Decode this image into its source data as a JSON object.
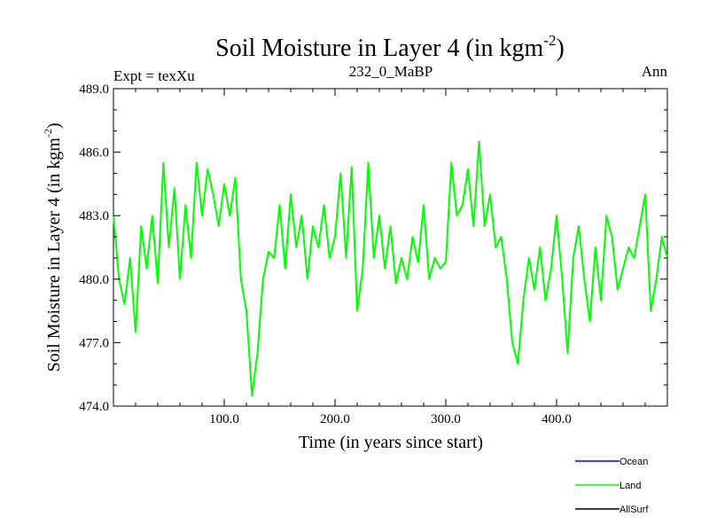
{
  "chart_data": {
    "type": "line",
    "title": "Soil Moisture in Layer 4 (in kgm",
    "title_units_exponent": "-2",
    "title_close": ")",
    "left_label": "Expt = texXu",
    "center_label": "232_0_MaBP",
    "right_label": "Ann",
    "xlabel": "Time (in years since start)",
    "ylabel": "Soil Moisture in Layer 4 (in kgm",
    "ylabel_exponent": "-2",
    "ylabel_close": ")",
    "xlim": [
      0,
      500
    ],
    "ylim": [
      474.0,
      489.0
    ],
    "x_ticks": [
      {
        "value": 100,
        "label": "100.0"
      },
      {
        "value": 200,
        "label": "200.0"
      },
      {
        "value": 300,
        "label": "300.0"
      },
      {
        "value": 400,
        "label": "400.0"
      }
    ],
    "y_ticks": [
      {
        "value": 474,
        "label": "474.0"
      },
      {
        "value": 477,
        "label": "477.0"
      },
      {
        "value": 480,
        "label": "480.0"
      },
      {
        "value": 483,
        "label": "483.0"
      },
      {
        "value": 486,
        "label": "486.0"
      },
      {
        "value": 489,
        "label": "489.0"
      }
    ],
    "legend": [
      {
        "name": "Ocean",
        "color": "#0000ff"
      },
      {
        "name": "Land",
        "color": "#00ff00"
      },
      {
        "name": "AllSurf",
        "color": "#000000"
      }
    ],
    "series": [
      {
        "name": "Land",
        "color": "#00ff00",
        "x_start": 0,
        "x_step": 5,
        "values": [
          483.0,
          480.0,
          478.8,
          481.0,
          477.5,
          482.5,
          480.5,
          483.0,
          479.8,
          485.5,
          481.5,
          484.3,
          480.0,
          483.5,
          481.0,
          485.5,
          483.0,
          485.2,
          484.0,
          482.5,
          484.5,
          483.0,
          484.8,
          480.0,
          478.5,
          474.5,
          476.5,
          480.0,
          481.3,
          481.0,
          483.5,
          480.5,
          484.0,
          481.5,
          483.0,
          480.0,
          482.5,
          481.5,
          483.5,
          481.0,
          482.0,
          485.0,
          481.0,
          485.3,
          478.5,
          480.5,
          485.5,
          481.0,
          483.0,
          480.5,
          482.5,
          479.8,
          481.0,
          480.0,
          482.0,
          480.8,
          483.5,
          480.0,
          481.0,
          480.5,
          480.8,
          485.5,
          483.0,
          483.5,
          485.2,
          482.5,
          486.5,
          482.5,
          484.0,
          481.5,
          482.0,
          480.0,
          477.0,
          476.0,
          479.0,
          481.0,
          479.5,
          481.5,
          479.0,
          480.5,
          483.0,
          480.0,
          476.5,
          481.0,
          482.5,
          480.0,
          478.0,
          481.5,
          479.0,
          483.0,
          482.0,
          479.5,
          480.5,
          481.5,
          481.0,
          482.5,
          484.0,
          478.5,
          480.0,
          482.0,
          481.0
        ]
      }
    ]
  }
}
